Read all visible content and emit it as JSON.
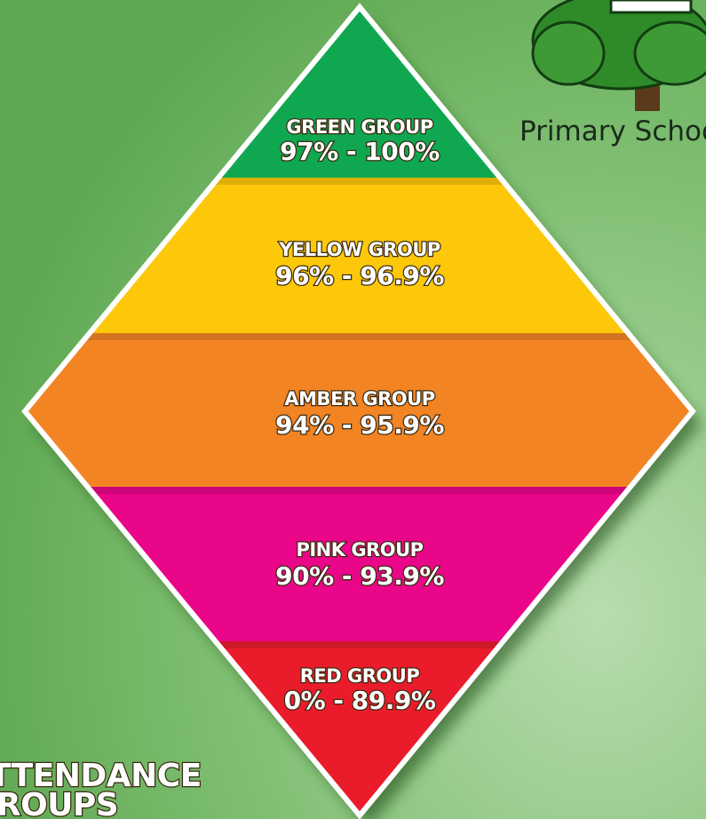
{
  "groups": [
    {
      "name": "GREEN GROUP",
      "range": "97% - 100%"
    },
    {
      "name": "YELLOW GROUP",
      "range": "96% - 96.9%"
    },
    {
      "name": "AMBER GROUP",
      "range": "94% - 95.9%"
    },
    {
      "name": "PINK GROUP",
      "range": "90% - 93.9%"
    },
    {
      "name": "RED GROUP",
      "range": "0% - 89.9%"
    }
  ],
  "logo": {
    "text": "Primary School"
  },
  "heading": {
    "line1": "ATTENDANCE",
    "line2": "GROUPS"
  }
}
